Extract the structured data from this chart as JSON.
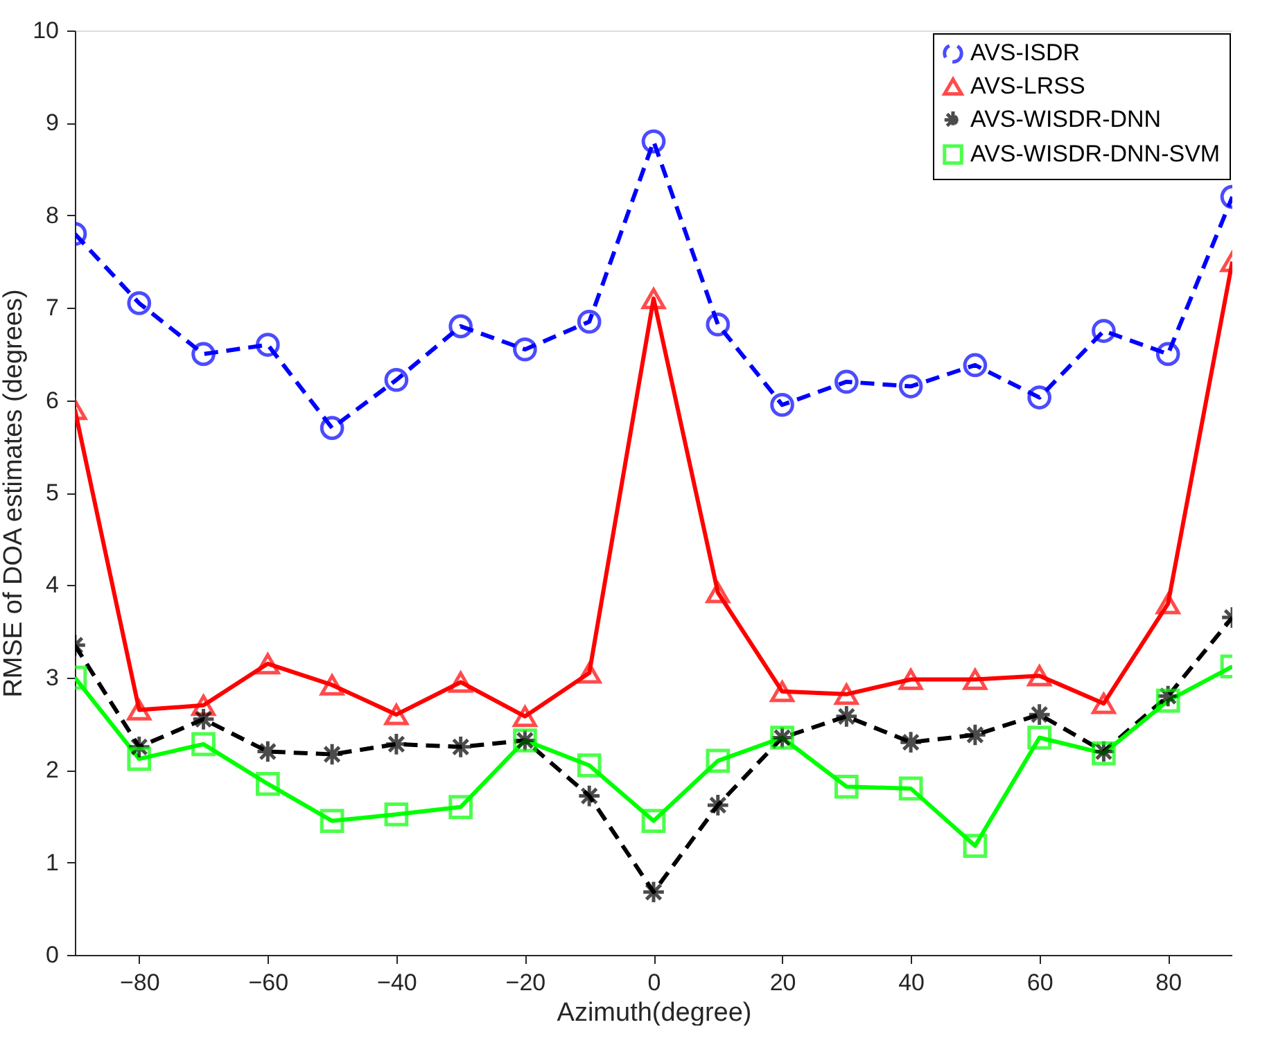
{
  "chart_data": {
    "type": "line",
    "xlabel": "Azimuth(degree)",
    "ylabel": "RMSE of DOA estimates (degrees)",
    "x": [
      -90,
      -80,
      -70,
      -60,
      -50,
      -40,
      -30,
      -20,
      -10,
      0,
      10,
      20,
      30,
      40,
      50,
      60,
      70,
      80,
      90
    ],
    "xlim": [
      -90,
      90
    ],
    "xticks": [
      -80,
      -60,
      -40,
      -20,
      0,
      20,
      40,
      60,
      80
    ],
    "ylim": [
      0,
      10
    ],
    "yticks": [
      0,
      1,
      2,
      3,
      4,
      5,
      6,
      7,
      8,
      9,
      10
    ],
    "grid": false,
    "legend": "top right",
    "series": [
      {
        "name": "AVS-ISDR",
        "color": "#0000ff",
        "marker": "circle",
        "line_style": "dashed",
        "values": [
          7.8,
          7.05,
          6.5,
          6.6,
          5.7,
          6.22,
          6.8,
          6.55,
          6.85,
          8.8,
          6.82,
          5.95,
          6.2,
          6.15,
          6.38,
          6.03,
          6.75,
          6.5,
          8.2
        ]
      },
      {
        "name": "AVS-LRSS",
        "color": "#ff0000",
        "marker": "triangle",
        "line_style": "solid",
        "values": [
          5.9,
          2.65,
          2.7,
          3.15,
          2.92,
          2.6,
          2.95,
          2.58,
          3.05,
          7.1,
          3.92,
          2.85,
          2.82,
          2.98,
          2.98,
          3.02,
          2.72,
          3.8,
          7.5
        ]
      },
      {
        "name": "AVS-WISDR-DNN",
        "color": "#000000",
        "marker": "cross",
        "line_style": "dashed",
        "values": [
          3.35,
          2.25,
          2.55,
          2.2,
          2.17,
          2.28,
          2.25,
          2.32,
          1.72,
          0.68,
          1.62,
          2.35,
          2.58,
          2.3,
          2.38,
          2.6,
          2.2,
          2.8,
          3.65
        ]
      },
      {
        "name": "AVS-WISDR-DNN-SVM",
        "color": "#00ff00",
        "marker": "square",
        "line_style": "solid",
        "values": [
          3.0,
          2.12,
          2.28,
          1.85,
          1.45,
          1.52,
          1.6,
          2.32,
          2.05,
          1.45,
          2.1,
          2.35,
          1.82,
          1.8,
          1.18,
          2.35,
          2.18,
          2.75,
          3.12
        ]
      }
    ]
  }
}
